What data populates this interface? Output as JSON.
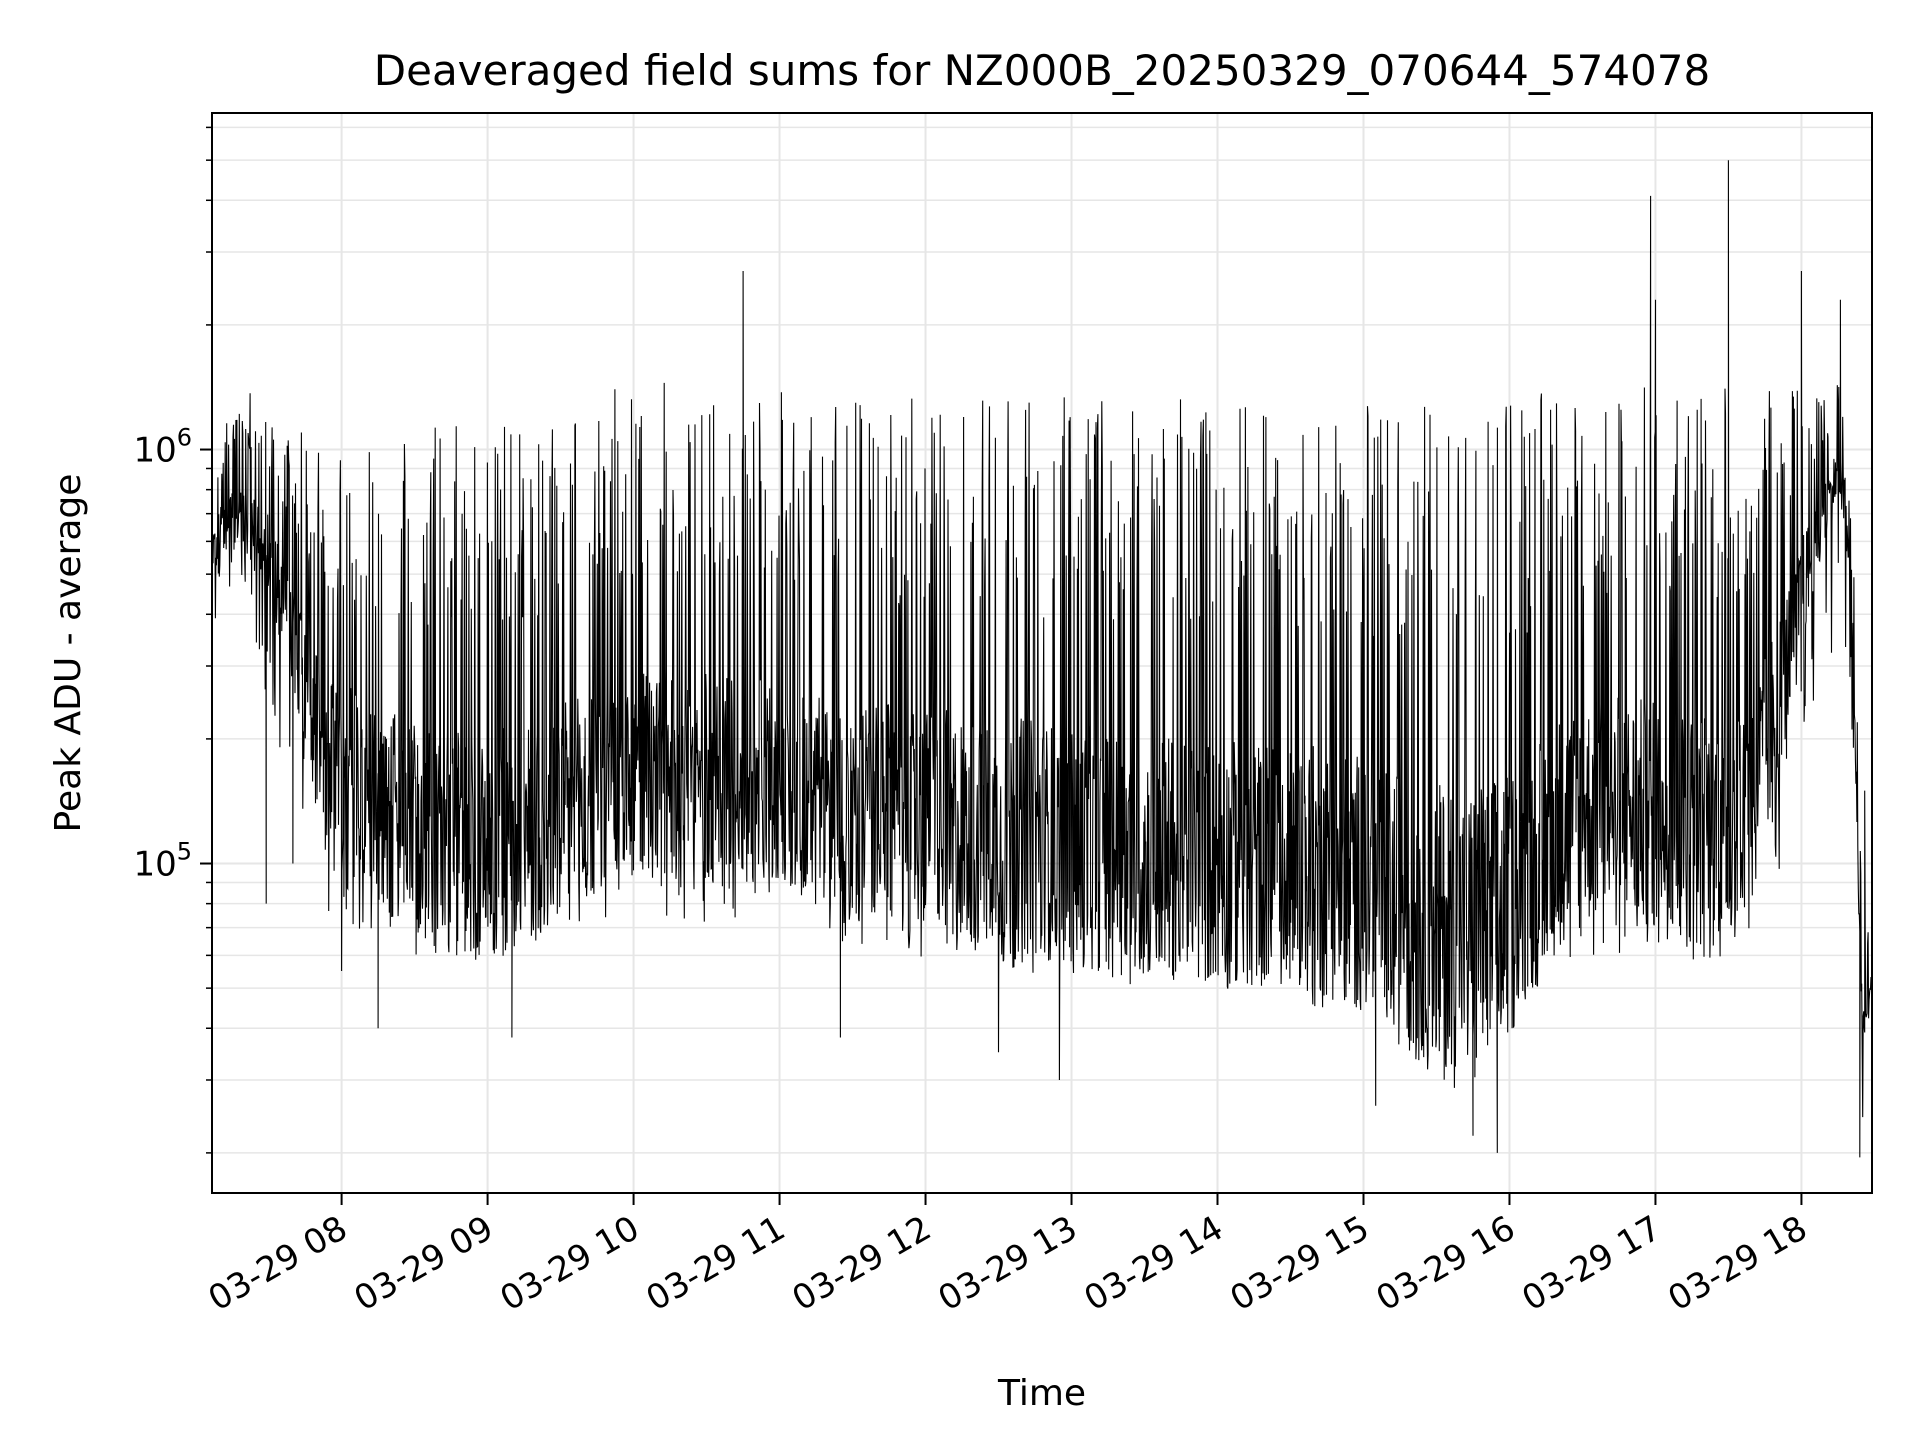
{
  "chart_data": {
    "type": "line",
    "title": "Deaveraged field sums for NZ000B_20250329_070644_574078",
    "xlabel": "Time",
    "ylabel": "Peak ADU - average",
    "y_scale": "log",
    "ylim": [
      16000,
      6500000
    ],
    "xlim": [
      "2025-03-29 07:06:44",
      "2025-03-29 18:29:00"
    ],
    "x_ticks": [
      "2025-03-29 08:00",
      "2025-03-29 09:00",
      "2025-03-29 10:00",
      "2025-03-29 11:00",
      "2025-03-29 12:00",
      "2025-03-29 13:00",
      "2025-03-29 14:00",
      "2025-03-29 15:00",
      "2025-03-29 16:00",
      "2025-03-29 17:00",
      "2025-03-29 18:00"
    ],
    "x_tick_labels": [
      "03-29 08",
      "03-29 09",
      "03-29 10",
      "03-29 11",
      "03-29 12",
      "03-29 13",
      "03-29 14",
      "03-29 15",
      "03-29 16",
      "03-29 17",
      "03-29 18"
    ],
    "y_major_ticks": [
      100000,
      1000000
    ],
    "y_tick_labels": [
      {
        "base": "10",
        "exp": "5"
      },
      {
        "base": "10",
        "exp": "6"
      }
    ],
    "y_minor_ticks": [
      20000,
      30000,
      40000,
      50000,
      60000,
      70000,
      80000,
      90000,
      200000,
      300000,
      400000,
      500000,
      600000,
      700000,
      800000,
      900000,
      2000000,
      3000000,
      4000000,
      5000000,
      6000000
    ],
    "grid": true,
    "legend": "none",
    "series": [
      {
        "color": "#000000",
        "x": [
          "2025-03-29 07:06:44",
          "2025-03-29 07:10",
          "2025-03-29 07:15",
          "2025-03-29 07:20",
          "2025-03-29 07:25",
          "2025-03-29 07:30",
          "2025-03-29 07:35",
          "2025-03-29 07:40",
          "2025-03-29 07:45",
          "2025-03-29 07:50",
          "2025-03-29 07:55",
          "2025-03-29 08:00",
          "2025-03-29 08:10",
          "2025-03-29 08:20",
          "2025-03-29 08:30",
          "2025-03-29 08:40",
          "2025-03-29 08:50",
          "2025-03-29 09:00",
          "2025-03-29 09:10",
          "2025-03-29 09:20",
          "2025-03-29 09:30",
          "2025-03-29 09:40",
          "2025-03-29 09:50",
          "2025-03-29 10:00",
          "2025-03-29 10:15",
          "2025-03-29 10:30",
          "2025-03-29 10:45",
          "2025-03-29 11:00",
          "2025-03-29 11:20",
          "2025-03-29 11:40",
          "2025-03-29 12:00",
          "2025-03-29 12:30",
          "2025-03-29 13:00",
          "2025-03-29 13:30",
          "2025-03-29 14:00",
          "2025-03-29 14:30",
          "2025-03-29 15:00",
          "2025-03-29 15:10",
          "2025-03-29 15:20",
          "2025-03-29 15:30",
          "2025-03-29 15:40",
          "2025-03-29 15:50",
          "2025-03-29 16:00",
          "2025-03-29 16:20",
          "2025-03-29 16:40",
          "2025-03-29 17:00",
          "2025-03-29 17:15",
          "2025-03-29 17:30",
          "2025-03-29 17:45",
          "2025-03-29 18:00",
          "2025-03-29 18:10",
          "2025-03-29 18:15",
          "2025-03-29 18:20",
          "2025-03-29 18:25",
          "2025-03-29 18:29"
        ],
        "y_center": [
          550000,
          600000,
          700000,
          650000,
          600000,
          550000,
          450000,
          350000,
          250000,
          200000,
          180000,
          170000,
          150000,
          130000,
          120000,
          115000,
          110000,
          110000,
          115000,
          120000,
          130000,
          140000,
          150000,
          160000,
          165000,
          160000,
          155000,
          150000,
          140000,
          130000,
          125000,
          120000,
          110000,
          105000,
          100000,
          100000,
          90000,
          80000,
          75000,
          72000,
          70000,
          72000,
          80000,
          120000,
          140000,
          130000,
          120000,
          125000,
          180000,
          450000,
          700000,
          900000,
          600000,
          40000,
          50000
        ],
        "y_high": [
          750000,
          1200000,
          1450000,
          1400000,
          1350000,
          1300000,
          1250000,
          1150000,
          1100000,
          1050000,
          1000000,
          1000000,
          1050000,
          1100000,
          1150000,
          1150000,
          1150000,
          1150000,
          1200000,
          1250000,
          1300000,
          1350000,
          1400000,
          1450000,
          1450000,
          1450000,
          1400000,
          1400000,
          1380000,
          1350000,
          1350000,
          1350000,
          1350000,
          1350000,
          1300000,
          1300000,
          1300000,
          1300000,
          1300000,
          1300000,
          1300000,
          1300000,
          1350000,
          1400000,
          1400000,
          1450000,
          1450000,
          1450000,
          1450000,
          1400000,
          1500000,
          1500000,
          1450000,
          70000,
          70000
        ],
        "y_low": [
          380000,
          400000,
          450000,
          400000,
          300000,
          250000,
          150000,
          110000,
          90000,
          80000,
          75000,
          70000,
          65000,
          60000,
          60000,
          60000,
          58000,
          58000,
          60000,
          62000,
          65000,
          68000,
          70000,
          72000,
          72000,
          70000,
          68000,
          65000,
          62000,
          60000,
          58000,
          55000,
          52000,
          50000,
          48000,
          46000,
          42000,
          36000,
          33000,
          30000,
          28000,
          30000,
          45000,
          55000,
          60000,
          60000,
          58000,
          58000,
          60000,
          200000,
          300000,
          350000,
          250000,
          20000,
          30000
        ],
        "spikes": [
          {
            "x": "2025-03-29 07:29",
            "y": 80000
          },
          {
            "x": "2025-03-29 07:40",
            "y": 100000
          },
          {
            "x": "2025-03-29 08:00",
            "y": 55000
          },
          {
            "x": "2025-03-29 08:15",
            "y": 40000
          },
          {
            "x": "2025-03-29 09:10",
            "y": 38000
          },
          {
            "x": "2025-03-29 10:45",
            "y": 2700000
          },
          {
            "x": "2025-03-29 11:25",
            "y": 38000
          },
          {
            "x": "2025-03-29 12:30",
            "y": 35000
          },
          {
            "x": "2025-03-29 12:55",
            "y": 30000
          },
          {
            "x": "2025-03-29 15:05",
            "y": 26000
          },
          {
            "x": "2025-03-29 15:45",
            "y": 22000
          },
          {
            "x": "2025-03-29 15:55",
            "y": 20000
          },
          {
            "x": "2025-03-29 16:58",
            "y": 4100000
          },
          {
            "x": "2025-03-29 17:00",
            "y": 2300000
          },
          {
            "x": "2025-03-29 17:30",
            "y": 5000000
          },
          {
            "x": "2025-03-29 18:00",
            "y": 2700000
          },
          {
            "x": "2025-03-29 18:16",
            "y": 2300000
          },
          {
            "x": "2025-03-29 18:24",
            "y": 19500
          },
          {
            "x": "2025-03-29 18:26",
            "y": 150000
          }
        ]
      }
    ]
  }
}
